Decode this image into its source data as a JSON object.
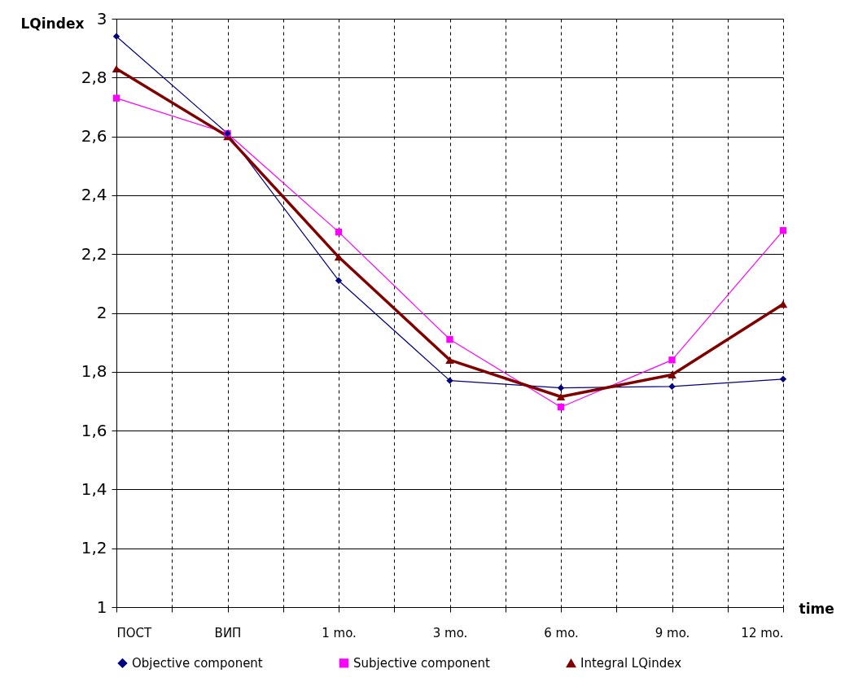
{
  "chart_data": {
    "type": "line",
    "xlabel": "time",
    "ylabel": "LQindex",
    "categories": [
      "ПОСТ",
      "ВИП",
      "1 mo.",
      "3 mo.",
      "6 mo.",
      "9 mo.",
      "12 mo."
    ],
    "series": [
      {
        "name": "Objective component",
        "color": "#00007f",
        "marker": "diamond",
        "values": [
          2.94,
          2.61,
          2.11,
          1.77,
          1.745,
          1.75,
          1.775
        ]
      },
      {
        "name": "Subjective component",
        "color": "#ff00ff",
        "marker": "square",
        "values": [
          2.73,
          2.61,
          2.275,
          1.91,
          1.68,
          1.84,
          2.28
        ]
      },
      {
        "name": "Integral LQindex",
        "color": "#800000",
        "marker": "triangle",
        "values": [
          2.83,
          2.6,
          2.19,
          1.84,
          1.715,
          1.79,
          2.03
        ]
      }
    ],
    "ylim": [
      1,
      3
    ],
    "yticks": [
      1,
      {
        "value": 1.2,
        "label": "1,2"
      },
      {
        "value": 1.4,
        "label": "1,4"
      },
      {
        "value": 1.6,
        "label": "1,6"
      },
      {
        "value": 1.8,
        "label": "1,8"
      },
      2,
      {
        "value": 2.2,
        "label": "2,2"
      },
      {
        "value": 2.4,
        "label": "2,4"
      },
      {
        "value": 2.6,
        "label": "2,6"
      },
      {
        "value": 2.8,
        "label": "2,8"
      },
      3
    ],
    "grid": true,
    "legend": "bottom"
  }
}
